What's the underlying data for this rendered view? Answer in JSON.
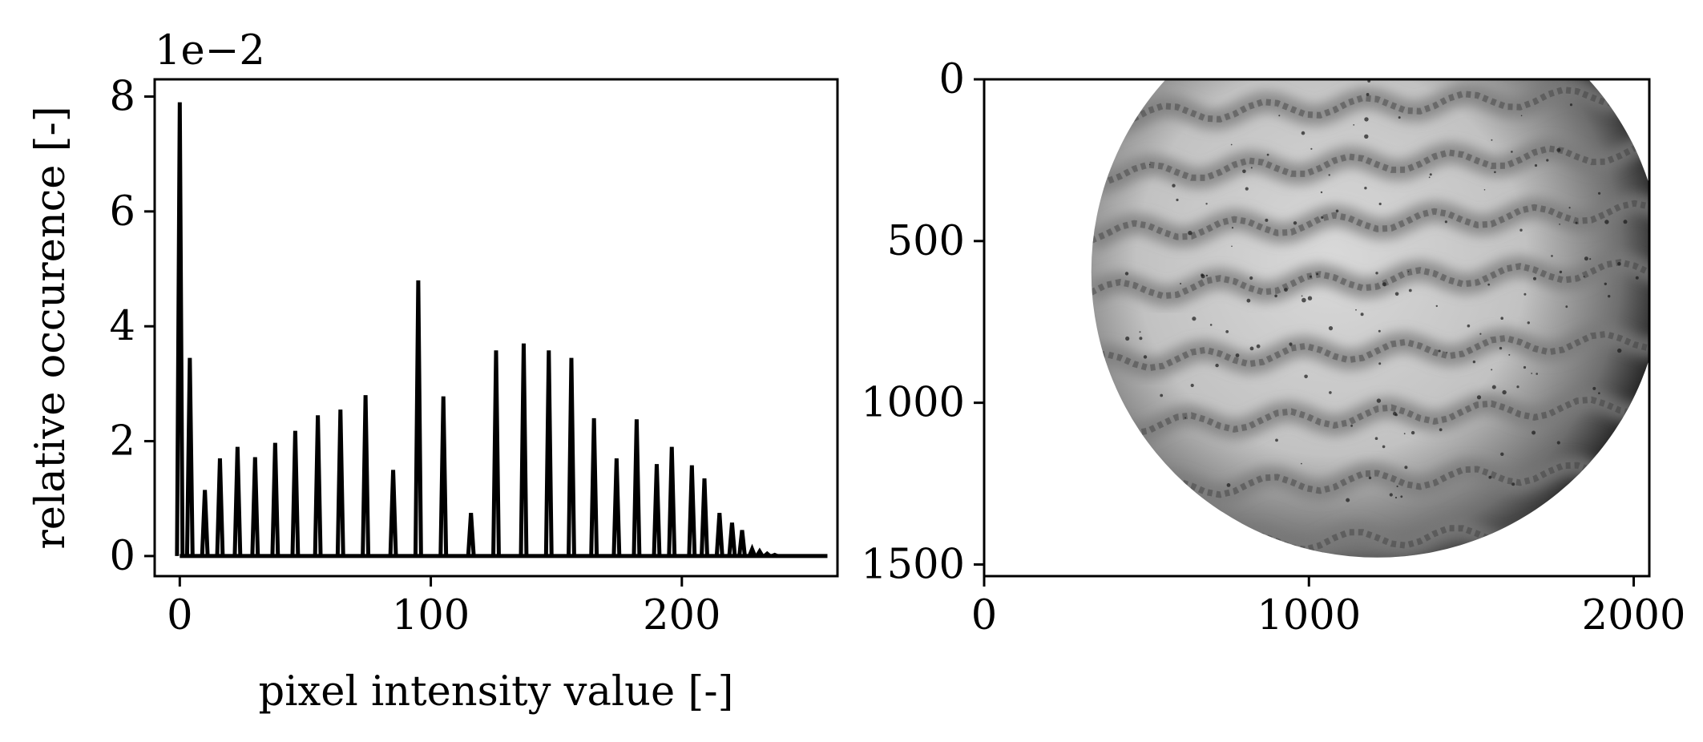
{
  "chart_data": [
    {
      "type": "line",
      "title": "",
      "xlabel": "pixel intensity value [-]",
      "ylabel": "relative occurence [-]",
      "offset_text": "1e−2",
      "xlim": [
        -10,
        262
      ],
      "ylim": [
        -0.35,
        8.3
      ],
      "x_ticks": [
        0,
        100,
        200
      ],
      "x_tick_labels": [
        "0",
        "100",
        "200"
      ],
      "y_ticks": [
        0,
        2,
        4,
        6,
        8
      ],
      "y_tick_labels": [
        "0",
        "2",
        "4",
        "6",
        "8"
      ],
      "grid": false,
      "legend": "none",
      "line_color": "#000000",
      "series": [
        {
          "peaks": [
            {
              "x": 0,
              "y": 7.9
            },
            {
              "x": 4,
              "y": 3.45
            },
            {
              "x": 10,
              "y": 1.15
            },
            {
              "x": 16,
              "y": 1.7
            },
            {
              "x": 23,
              "y": 1.9
            },
            {
              "x": 30,
              "y": 1.72
            },
            {
              "x": 38,
              "y": 1.97
            },
            {
              "x": 46,
              "y": 2.18
            },
            {
              "x": 55,
              "y": 2.45
            },
            {
              "x": 64,
              "y": 2.55
            },
            {
              "x": 74,
              "y": 2.8
            },
            {
              "x": 85,
              "y": 1.5
            },
            {
              "x": 95,
              "y": 4.8
            },
            {
              "x": 105,
              "y": 2.78
            },
            {
              "x": 116,
              "y": 0.75
            },
            {
              "x": 126,
              "y": 3.58
            },
            {
              "x": 137,
              "y": 3.7
            },
            {
              "x": 147,
              "y": 3.58
            },
            {
              "x": 156,
              "y": 3.45
            },
            {
              "x": 165,
              "y": 2.4
            },
            {
              "x": 174,
              "y": 1.7
            },
            {
              "x": 182,
              "y": 2.38
            },
            {
              "x": 190,
              "y": 1.6
            },
            {
              "x": 196,
              "y": 1.9
            },
            {
              "x": 204,
              "y": 1.58
            },
            {
              "x": 209,
              "y": 1.35
            },
            {
              "x": 215,
              "y": 0.75
            },
            {
              "x": 220,
              "y": 0.58
            },
            {
              "x": 224,
              "y": 0.45
            },
            {
              "x": 228,
              "y": 0.12
            },
            {
              "x": 231,
              "y": 0.08
            },
            {
              "x": 234,
              "y": 0.04
            },
            {
              "x": 237,
              "y": 0.02
            }
          ],
          "x_end": 258
        }
      ]
    },
    {
      "type": "image",
      "title": "",
      "xlim": [
        0,
        2048
      ],
      "ylim": [
        1536,
        0
      ],
      "x_ticks": [
        0,
        1000,
        2000
      ],
      "x_tick_labels": [
        "0",
        "1000",
        "2000"
      ],
      "y_ticks": [
        0,
        500,
        1000,
        1500
      ],
      "y_tick_labels": [
        "0",
        "500",
        "1000",
        "1500"
      ],
      "grid": false,
      "image_content": "grayscale microscope view, circular field of view, dark wavy horizontal bands",
      "field_circle_center": [
        1210,
        595
      ],
      "field_circle_radius": 880,
      "band_centers_y": [
        80,
        260,
        440,
        620,
        840,
        1040,
        1240,
        1420
      ],
      "colors": {
        "dark": "#1a1a1a",
        "mid": "#7a7a7a",
        "light": "#d8d8d8"
      }
    }
  ]
}
